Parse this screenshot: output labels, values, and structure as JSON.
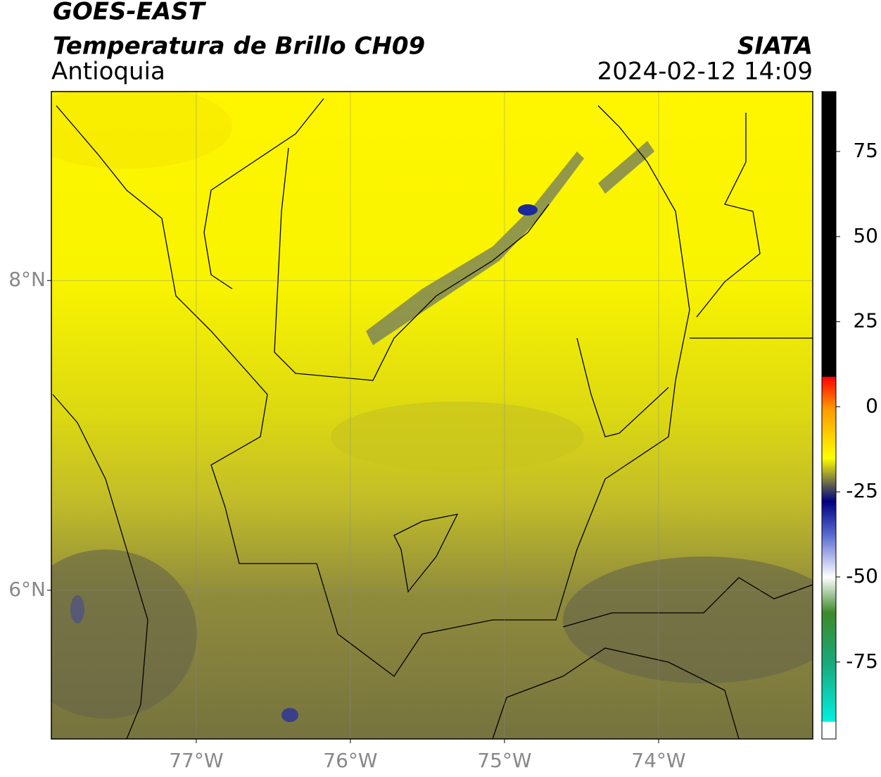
{
  "header": {
    "title": "GOES-EAST",
    "subtitle": "Temperatura de Brillo CH09",
    "region": "Antioquia",
    "source": "SIATA",
    "datetime": "2024-02-12 14:09"
  },
  "map": {
    "xlim": [
      -77.94,
      -73.0
    ],
    "ylim": [
      5.04,
      9.22
    ],
    "grid": true,
    "xticks": [
      {
        "value": -77,
        "label": "77°W"
      },
      {
        "value": -76,
        "label": "76°W"
      },
      {
        "value": -75,
        "label": "75°W"
      },
      {
        "value": -74,
        "label": "74°W"
      }
    ],
    "yticks": [
      {
        "value": 8,
        "label": "8°N"
      },
      {
        "value": 6,
        "label": "6°N"
      }
    ]
  },
  "colorbar": {
    "lim": [
      -97.6,
      92.6
    ],
    "ticks": [
      75,
      50,
      25,
      0,
      -25,
      -50,
      -75
    ]
  }
}
